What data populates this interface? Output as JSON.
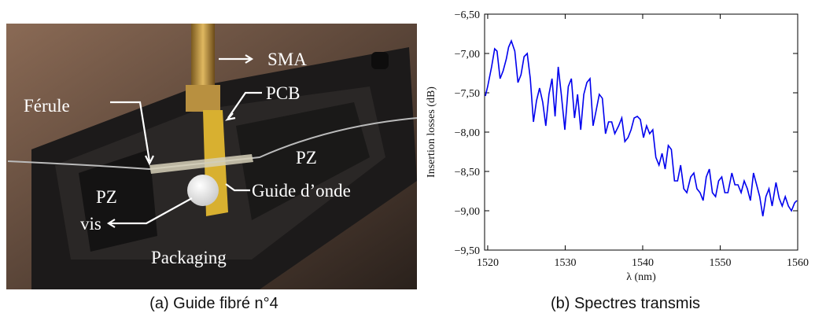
{
  "figure": {
    "photo_labels": [
      "SMA",
      "PCB",
      "Férule",
      "PZ",
      "PZ",
      "Guide d’onde",
      "vis",
      "Packaging"
    ],
    "captions": [
      "(a) Guide fibré n°4",
      "(b) Spectres transmis"
    ]
  },
  "chart_data": {
    "type": "line",
    "xlabel": "λ (nm)",
    "ylabel": "Insertion losses (dB)",
    "color": "#0000ee",
    "xlim": [
      1519.6,
      1560
    ],
    "xticks": [
      1520,
      1530,
      1540,
      1550,
      1560
    ],
    "ylim": [
      -9.5,
      -6.5
    ],
    "yticks": [
      {
        "value": -6.5,
        "label": "−6,50"
      },
      {
        "value": -7,
        "label": "−7,00"
      },
      {
        "value": -7.5,
        "label": "−7,50"
      },
      {
        "value": -8,
        "label": "−8,00"
      },
      {
        "value": -8.5,
        "label": "−8,50"
      },
      {
        "value": -9,
        "label": "−9,00"
      },
      {
        "value": -9.5,
        "label": "−9,50"
      }
    ],
    "x": [
      1519.7,
      1520.0,
      1520.5,
      1520.9,
      1521.2,
      1521.6,
      1522.0,
      1522.4,
      1522.7,
      1523.05,
      1523.5,
      1523.9,
      1524.3,
      1524.7,
      1525.1,
      1525.5,
      1525.9,
      1526.3,
      1526.7,
      1527.1,
      1527.5,
      1527.9,
      1528.3,
      1528.7,
      1529.1,
      1529.5,
      1529.95,
      1530.4,
      1530.8,
      1531.2,
      1531.6,
      1532.0,
      1532.4,
      1532.8,
      1533.2,
      1533.6,
      1534.0,
      1534.4,
      1534.8,
      1535.2,
      1535.6,
      1536.0,
      1536.4,
      1536.9,
      1537.3,
      1537.7,
      1538.1,
      1538.5,
      1538.9,
      1539.3,
      1539.7,
      1540.1,
      1540.5,
      1540.9,
      1541.3,
      1541.7,
      1542.1,
      1542.5,
      1542.9,
      1543.3,
      1543.7,
      1544.1,
      1544.5,
      1544.9,
      1545.3,
      1545.7,
      1546.2,
      1546.6,
      1547.0,
      1547.4,
      1547.8,
      1548.2,
      1548.6,
      1549.0,
      1549.4,
      1549.8,
      1550.2,
      1550.6,
      1551.0,
      1551.5,
      1551.9,
      1552.3,
      1552.7,
      1553.1,
      1553.5,
      1553.9,
      1554.3,
      1554.7,
      1555.1,
      1555.5,
      1555.9,
      1556.3,
      1556.7,
      1557.2,
      1557.6,
      1558.0,
      1558.4,
      1558.8,
      1559.2,
      1559.6,
      1559.9
    ],
    "values": [
      -7.54,
      -7.42,
      -7.17,
      -6.94,
      -6.97,
      -7.32,
      -7.22,
      -7.07,
      -6.92,
      -6.84,
      -6.97,
      -7.37,
      -7.27,
      -7.04,
      -7.0,
      -7.32,
      -7.87,
      -7.6,
      -7.44,
      -7.62,
      -7.92,
      -7.52,
      -7.32,
      -7.8,
      -7.17,
      -7.52,
      -7.97,
      -7.42,
      -7.32,
      -7.82,
      -7.52,
      -7.97,
      -7.52,
      -7.37,
      -7.32,
      -7.92,
      -7.72,
      -7.52,
      -7.57,
      -8.02,
      -7.87,
      -7.87,
      -8.02,
      -7.92,
      -7.82,
      -8.12,
      -8.07,
      -7.97,
      -7.82,
      -7.8,
      -7.84,
      -8.07,
      -7.92,
      -8.02,
      -7.97,
      -8.32,
      -8.42,
      -8.27,
      -8.47,
      -8.17,
      -8.22,
      -8.62,
      -8.62,
      -8.42,
      -8.72,
      -8.77,
      -8.57,
      -8.52,
      -8.72,
      -8.77,
      -8.87,
      -8.57,
      -8.47,
      -8.77,
      -8.82,
      -8.62,
      -8.57,
      -8.77,
      -8.77,
      -8.52,
      -8.67,
      -8.67,
      -8.77,
      -8.62,
      -8.72,
      -8.87,
      -8.52,
      -8.67,
      -8.82,
      -9.07,
      -8.82,
      -8.72,
      -8.94,
      -8.64,
      -8.84,
      -8.94,
      -8.82,
      -8.94,
      -9.0,
      -8.9,
      -8.87
    ]
  }
}
